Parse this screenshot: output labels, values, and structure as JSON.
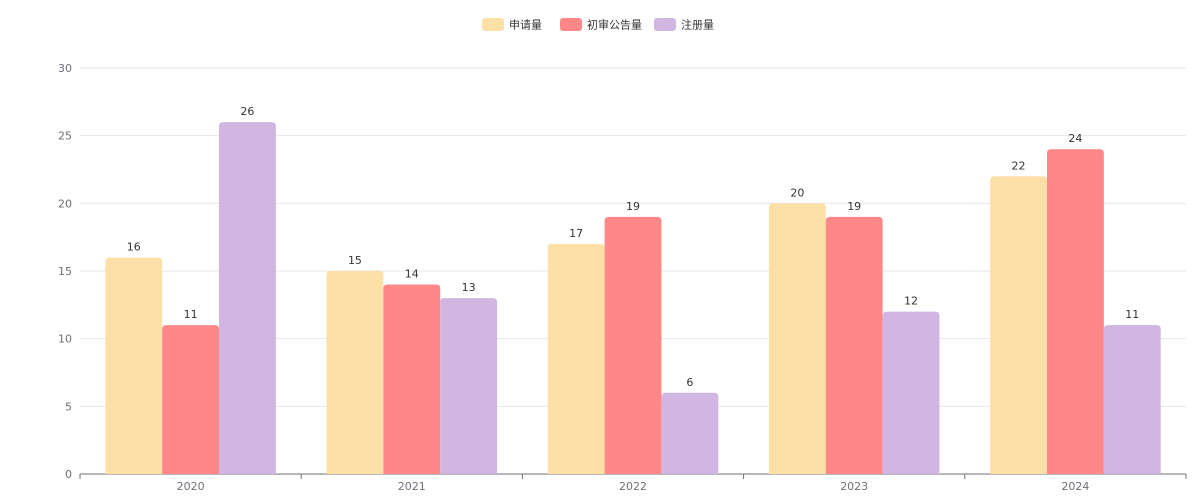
{
  "chart_data": {
    "type": "bar",
    "title": "",
    "xlabel": "",
    "ylabel": "",
    "categories": [
      "2020",
      "2021",
      "2022",
      "2023",
      "2024"
    ],
    "series": [
      {
        "name": "申请量",
        "color": "#fde0a8",
        "values": [
          16,
          15,
          17,
          20,
          22
        ]
      },
      {
        "name": "初审公告量",
        "color": "#ff8787",
        "values": [
          11,
          14,
          19,
          19,
          24
        ]
      },
      {
        "name": "注册量",
        "color": "#d1b6e1",
        "values": [
          26,
          13,
          6,
          12,
          11
        ]
      }
    ],
    "ylim": [
      0,
      30
    ],
    "yticks": [
      0,
      5,
      10,
      15,
      20,
      25,
      30
    ],
    "grid": true,
    "legend_position": "top-center"
  }
}
